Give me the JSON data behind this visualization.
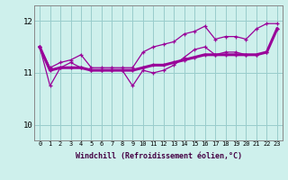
{
  "xlabel": "Windchill (Refroidissement éolien,°C)",
  "x": [
    0,
    1,
    2,
    3,
    4,
    5,
    6,
    7,
    8,
    9,
    10,
    11,
    12,
    13,
    14,
    15,
    16,
    17,
    18,
    19,
    20,
    21,
    22,
    23
  ],
  "line_thick": [
    11.5,
    11.05,
    11.1,
    11.1,
    11.1,
    11.05,
    11.05,
    11.05,
    11.05,
    11.05,
    11.1,
    11.15,
    11.15,
    11.2,
    11.25,
    11.3,
    11.35,
    11.35,
    11.35,
    11.35,
    11.35,
    11.35,
    11.4,
    11.85
  ],
  "line_upper": [
    11.5,
    11.1,
    11.2,
    11.25,
    11.35,
    11.1,
    11.1,
    11.1,
    11.1,
    11.1,
    11.4,
    11.5,
    11.55,
    11.6,
    11.75,
    11.8,
    11.9,
    11.65,
    11.7,
    11.7,
    11.65,
    11.85,
    11.95,
    11.95
  ],
  "line_lower": [
    11.5,
    10.75,
    11.1,
    11.2,
    11.1,
    11.05,
    11.05,
    11.05,
    11.05,
    10.75,
    11.05,
    11.0,
    11.05,
    11.15,
    11.3,
    11.45,
    11.5,
    11.35,
    11.4,
    11.4,
    11.35,
    11.35,
    11.4,
    11.85
  ],
  "bg_color": "#cef0ec",
  "line_color": "#990099",
  "grid_color": "#99cccc",
  "ylim": [
    9.7,
    12.3
  ],
  "yticks": [
    10,
    11,
    12
  ],
  "xlim": [
    -0.5,
    23.5
  ]
}
